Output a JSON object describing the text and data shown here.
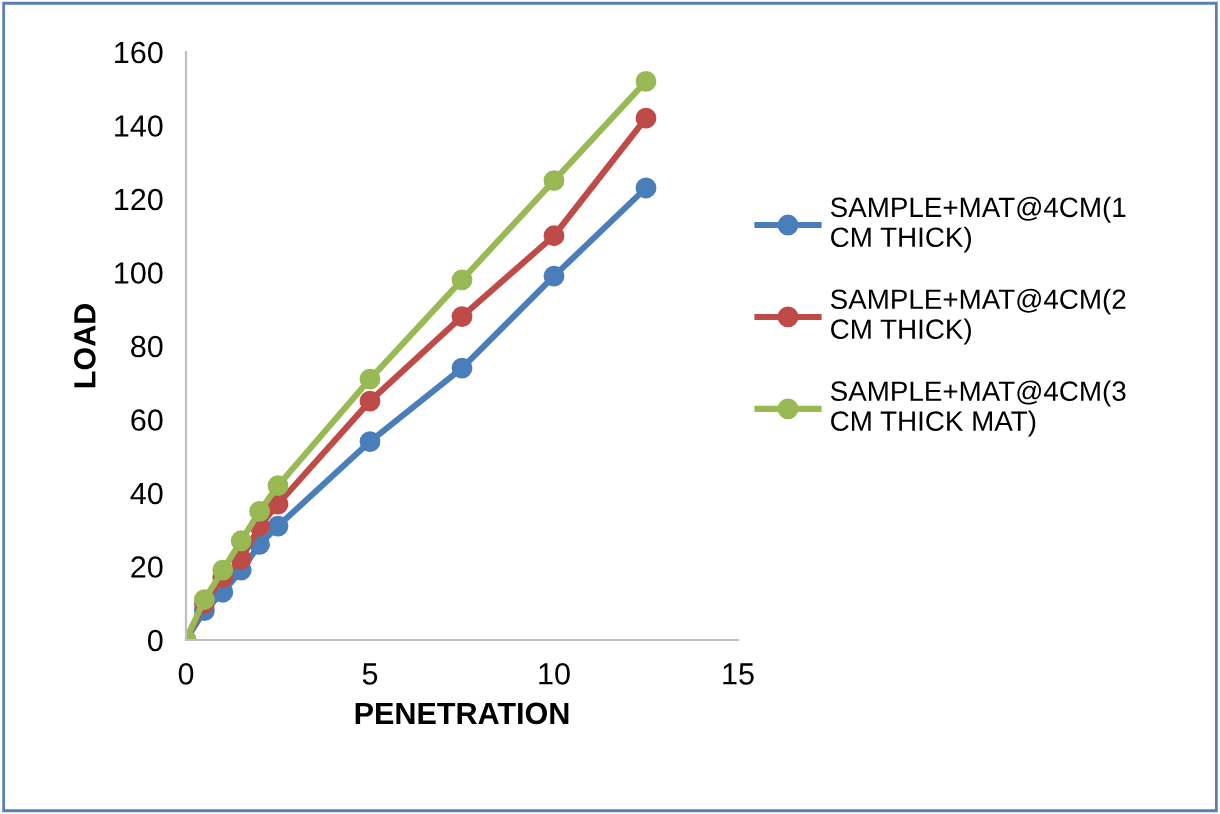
{
  "chart_data": {
    "type": "line",
    "xlabel": "PENETRATION",
    "ylabel": "LOAD",
    "x": [
      0,
      0.5,
      1,
      1.5,
      2,
      2.5,
      5,
      7.5,
      10,
      12.5
    ],
    "series": [
      {
        "name": "SAMPLE+MAT@4CM(1\nCM THICK)",
        "color": "#4a7ebb",
        "values": [
          0,
          8,
          13,
          19,
          26,
          31,
          54,
          74,
          99,
          123
        ]
      },
      {
        "name": "SAMPLE+MAT@4CM(2\nCM THICK)",
        "color": "#be4b48",
        "values": [
          0,
          10,
          17,
          22,
          31,
          37,
          65,
          88,
          110,
          142
        ]
      },
      {
        "name": "SAMPLE+MAT@4CM(3\nCM THICK MAT)",
        "color": "#98b954",
        "values": [
          0,
          11,
          19,
          27,
          35,
          42,
          71,
          98,
          125,
          152
        ]
      }
    ],
    "xlim": [
      0,
      15
    ],
    "xticks": [
      0,
      5,
      10,
      15
    ],
    "ylim": [
      0,
      160
    ],
    "yticks": [
      0,
      20,
      40,
      60,
      80,
      100,
      120,
      140,
      160
    ],
    "grid": false,
    "legend": "right",
    "marker": "circle",
    "line_style": "solid"
  }
}
